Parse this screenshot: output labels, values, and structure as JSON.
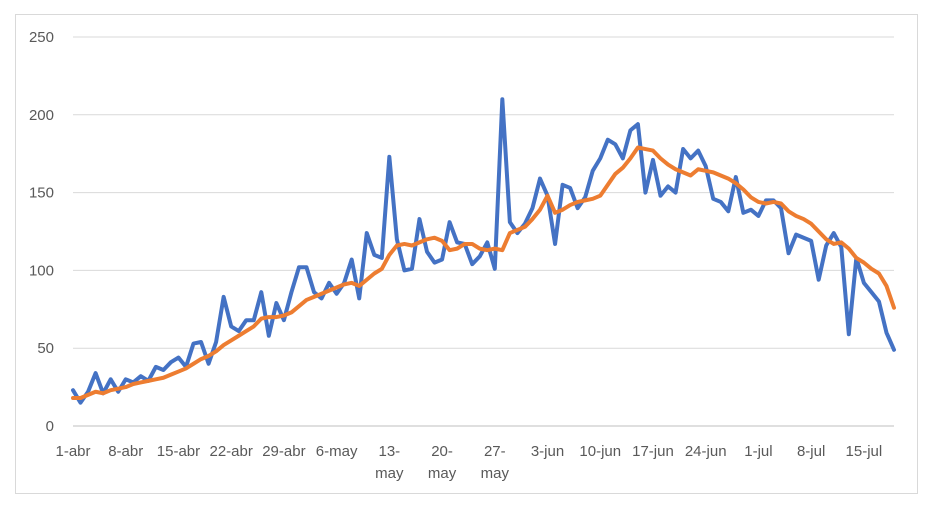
{
  "chart_data": {
    "type": "line",
    "title": "",
    "xlabel": "",
    "ylabel": "",
    "ylim": [
      0,
      250
    ],
    "yticks": [
      0,
      50,
      100,
      150,
      200,
      250
    ],
    "grid": true,
    "legend": "none",
    "x_start": "1-abr",
    "x_end": "19-jul",
    "x_tick_labels": [
      {
        "day": 0,
        "lines": [
          "1-abr"
        ]
      },
      {
        "day": 7,
        "lines": [
          "8-abr"
        ]
      },
      {
        "day": 14,
        "lines": [
          "15-abr"
        ]
      },
      {
        "day": 21,
        "lines": [
          "22-abr"
        ]
      },
      {
        "day": 28,
        "lines": [
          "29-abr"
        ]
      },
      {
        "day": 35,
        "lines": [
          "6-may"
        ]
      },
      {
        "day": 42,
        "lines": [
          "13-",
          "may"
        ]
      },
      {
        "day": 49,
        "lines": [
          "20-",
          "may"
        ]
      },
      {
        "day": 56,
        "lines": [
          "27-",
          "may"
        ]
      },
      {
        "day": 63,
        "lines": [
          "3-jun"
        ]
      },
      {
        "day": 70,
        "lines": [
          "10-jun"
        ]
      },
      {
        "day": 77,
        "lines": [
          "17-jun"
        ]
      },
      {
        "day": 84,
        "lines": [
          "24-jun"
        ]
      },
      {
        "day": 91,
        "lines": [
          "1-jul"
        ]
      },
      {
        "day": 98,
        "lines": [
          "8-jul"
        ]
      },
      {
        "day": 105,
        "lines": [
          "15-jul"
        ]
      }
    ],
    "series": [
      {
        "color": "#4472c4",
        "values": [
          23,
          15,
          22,
          34,
          21,
          30,
          22,
          30,
          28,
          32,
          29,
          38,
          36,
          41,
          44,
          38,
          53,
          54,
          40,
          54,
          83,
          64,
          61,
          68,
          68,
          86,
          58,
          79,
          68,
          86,
          102,
          102,
          86,
          82,
          92,
          85,
          92,
          107,
          82,
          124,
          110,
          108,
          173,
          120,
          100,
          101,
          133,
          112,
          105,
          107,
          131,
          118,
          117,
          104,
          109,
          118,
          101,
          210,
          131,
          124,
          130,
          140,
          159,
          148,
          117,
          155,
          153,
          140,
          147,
          164,
          172,
          184,
          181,
          172,
          190,
          194,
          150,
          171,
          148,
          154,
          150,
          178,
          172,
          177,
          167,
          146,
          144,
          138,
          160,
          137,
          139,
          135,
          145,
          145,
          140,
          111,
          123,
          121,
          119,
          94,
          116,
          124,
          115,
          59,
          108,
          92,
          86,
          80,
          60,
          49
        ]
      },
      {
        "color": "#ed7d31",
        "values": [
          18,
          18,
          20,
          22,
          21,
          23,
          24,
          25,
          27,
          28,
          29,
          30,
          31,
          33,
          35,
          37,
          40,
          43,
          45,
          48,
          52,
          55,
          58,
          61,
          64,
          69,
          70,
          70,
          71,
          73,
          77,
          81,
          83,
          85,
          87,
          89,
          91,
          92,
          90,
          94,
          98,
          101,
          110,
          116,
          117,
          116,
          118,
          120,
          121,
          119,
          113,
          114,
          117,
          117,
          114,
          113,
          114,
          113,
          124,
          126,
          128,
          133,
          139,
          148,
          137,
          139,
          142,
          144,
          145,
          146,
          148,
          155,
          162,
          166,
          172,
          179,
          178,
          177,
          172,
          168,
          165,
          163,
          161,
          165,
          164,
          163,
          161,
          159,
          156,
          152,
          147,
          144,
          143,
          144,
          143,
          138,
          135,
          133,
          130,
          125,
          120,
          117,
          118,
          114,
          108,
          105,
          101,
          98,
          90,
          76
        ]
      }
    ]
  }
}
